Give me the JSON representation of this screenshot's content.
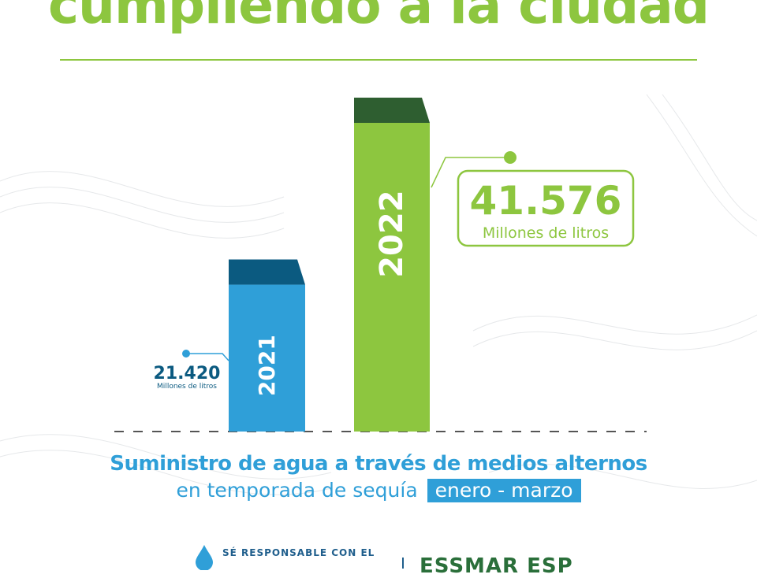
{
  "headline": "cumpliendo a la ciudad",
  "subtitle_line1": "Suministro de agua a través de medios alternos",
  "subtitle_line2": "en temporada de sequía",
  "subtitle_period": "enero - marzo",
  "footer": {
    "tagline": "SÉ RESPONSABLE CON EL",
    "brand": "ESSMAR ESP"
  },
  "colors": {
    "green": "#8dc63f",
    "green_dark": "#2e5e30",
    "blue": "#2f9fd8",
    "blue_dark": "#0b5a80"
  },
  "chart_data": {
    "type": "bar",
    "categories": [
      "2021",
      "2022"
    ],
    "values": [
      21420,
      41576
    ],
    "value_labels": [
      "21.420",
      "41.576"
    ],
    "unit_label": "Millones de litros",
    "title": "",
    "xlabel": "",
    "ylabel": "",
    "ylim": [
      0,
      45000
    ],
    "grid": false
  }
}
